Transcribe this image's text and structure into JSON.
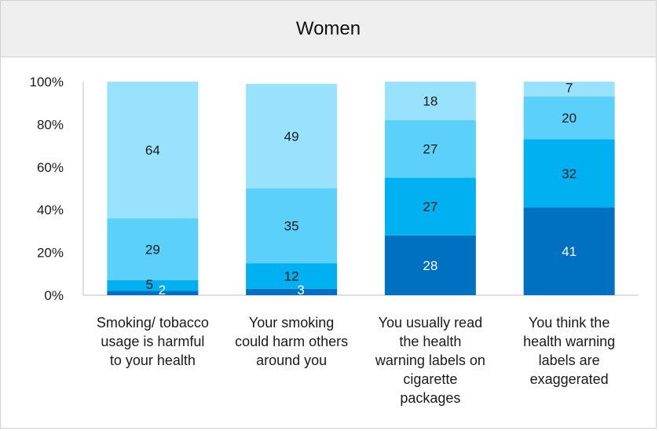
{
  "chart_data": {
    "type": "bar",
    "stacked": true,
    "title": "Women",
    "categories": [
      "Smoking/ tobacco usage is harmful to your health",
      "Your smoking could harm others around you",
      "You usually read the health warning labels on cigarette packages",
      "You think the health warning labels are exaggerated"
    ],
    "category_lines": [
      [
        "Smoking/ tobacco",
        "usage is harmful",
        "to your health"
      ],
      [
        "Your smoking",
        "could harm others",
        "around you"
      ],
      [
        "You usually read",
        "the health",
        "warning labels on",
        "cigarette",
        "packages"
      ],
      [
        "You think the",
        "health warning",
        "labels are",
        "exaggerated"
      ]
    ],
    "series": [
      {
        "color": "#0070c0",
        "label_color": "#ffffff",
        "values": [
          2,
          3,
          28,
          41
        ]
      },
      {
        "color": "#00b0f0",
        "label_color": "#1a1a1a",
        "values": [
          5,
          12,
          27,
          32
        ]
      },
      {
        "color": "#5bd0fb",
        "label_color": "#1a1a1a",
        "values": [
          29,
          35,
          27,
          20
        ]
      },
      {
        "color": "#99e2fd",
        "label_color": "#1a1a1a",
        "values": [
          64,
          49,
          18,
          7
        ]
      }
    ],
    "ylim": [
      0,
      100
    ],
    "yticks": [
      "0%",
      "20%",
      "40%",
      "60%",
      "80%",
      "100%"
    ],
    "grid": false,
    "legend": "none"
  }
}
